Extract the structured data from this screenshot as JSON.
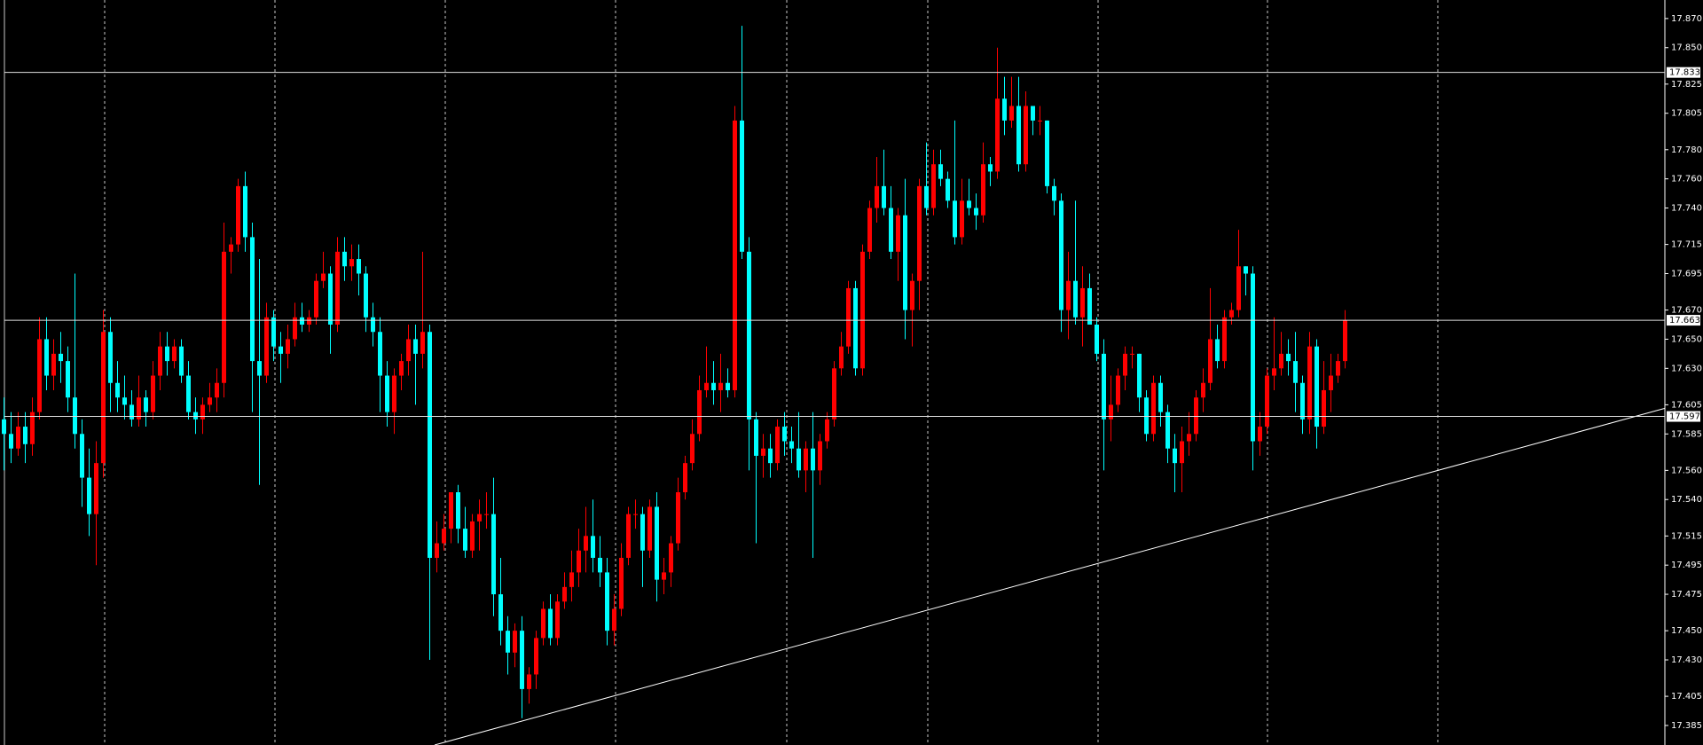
{
  "chart_data": {
    "type": "candlestick",
    "up_color": "#ff0000",
    "down_color": "#00ffff",
    "ylim": [
      17.3716,
      17.8827
    ],
    "yticks": [
      {
        "value": 17.87,
        "label": "17.870"
      },
      {
        "value": 17.85,
        "label": "17.850"
      },
      17.825,
      17.805,
      {
        "value": 17.78,
        "label": "17.780"
      },
      {
        "value": 17.76,
        "label": "17.760"
      },
      {
        "value": 17.74,
        "label": "17.740"
      },
      17.715,
      17.695,
      {
        "value": 17.67,
        "label": "17.670"
      },
      {
        "value": 17.65,
        "label": "17.650"
      },
      {
        "value": 17.63,
        "label": "17.630"
      },
      17.605,
      17.585,
      {
        "value": 17.56,
        "label": "17.560"
      },
      {
        "value": 17.54,
        "label": "17.540"
      },
      17.515,
      17.495,
      17.475,
      {
        "value": 17.45,
        "label": "17.450"
      },
      {
        "value": 17.43,
        "label": "17.430"
      },
      17.405,
      17.385
    ],
    "levels": [
      17.833,
      17.663,
      17.597
    ],
    "trendline": [
      17.3716,
      17.6026
    ],
    "open": [
      17.595,
      17.585,
      17.575,
      17.59,
      17.578,
      17.6,
      17.65,
      17.625,
      17.64,
      17.635,
      17.61,
      17.585,
      17.555,
      17.53,
      17.565,
      17.655,
      17.62,
      17.61,
      17.605,
      17.595,
      17.61,
      17.6,
      17.625,
      17.645,
      17.635,
      17.645,
      17.625,
      17.6,
      17.595,
      17.605,
      17.61,
      17.62,
      17.71,
      17.715,
      17.755,
      17.72,
      17.635,
      17.625,
      17.665,
      17.645,
      17.64,
      17.65,
      17.665,
      17.66,
      17.665,
      17.69,
      17.695,
      17.66,
      17.71,
      17.7,
      17.705,
      17.695,
      17.665,
      17.655,
      17.625,
      17.6,
      17.625,
      17.635,
      17.65,
      17.64,
      17.655,
      17.5,
      17.51,
      17.52,
      17.545,
      17.52,
      17.505,
      17.525,
      17.53,
      17.53,
      17.475,
      17.45,
      17.435,
      17.45,
      17.41,
      17.42,
      17.445,
      17.465,
      17.445,
      17.47,
      17.48,
      17.49,
      17.505,
      17.515,
      17.5,
      17.49,
      17.45,
      17.465,
      17.5,
      17.53,
      17.53,
      17.505,
      17.535,
      17.485,
      17.49,
      17.51,
      17.545,
      17.565,
      17.585,
      17.615,
      17.62,
      17.615,
      17.62,
      17.615,
      17.8,
      17.71,
      17.595,
      17.57,
      17.575,
      17.565,
      17.59,
      17.58,
      17.575,
      17.56,
      17.575,
      17.56,
      17.58,
      17.595,
      17.63,
      17.645,
      17.685,
      17.63,
      17.71,
      17.74,
      17.755,
      17.74,
      17.71,
      17.735,
      17.67,
      17.69,
      17.755,
      17.74,
      17.77,
      17.76,
      17.745,
      17.72,
      17.745,
      17.74,
      17.735,
      17.77,
      17.765,
      17.815,
      17.8,
      17.81,
      17.77,
      17.81,
      17.8,
      17.8,
      17.755,
      17.745,
      17.67,
      17.69,
      17.665,
      17.685,
      17.66,
      17.64,
      17.595,
      17.605,
      17.625,
      17.64,
      17.64,
      17.61,
      17.585,
      17.62,
      17.6,
      17.575,
      17.565,
      17.58,
      17.585,
      17.61,
      17.62,
      17.65,
      17.635,
      17.665,
      17.67,
      17.7,
      17.695,
      17.58,
      17.59,
      17.625,
      17.63,
      17.64,
      17.635,
      17.62,
      17.595,
      17.645,
      17.59,
      17.615,
      17.625,
      17.635
    ],
    "high": [
      17.61,
      17.6,
      17.6,
      17.6,
      17.61,
      17.665,
      17.665,
      17.65,
      17.655,
      17.645,
      17.695,
      17.595,
      17.575,
      17.58,
      17.67,
      17.665,
      17.635,
      17.625,
      17.615,
      17.625,
      17.615,
      17.635,
      17.655,
      17.655,
      17.65,
      17.65,
      17.635,
      17.61,
      17.61,
      17.62,
      17.63,
      17.73,
      17.72,
      17.76,
      17.765,
      17.73,
      17.705,
      17.675,
      17.67,
      17.655,
      17.66,
      17.675,
      17.675,
      17.67,
      17.695,
      17.71,
      17.7,
      17.72,
      17.72,
      17.715,
      17.715,
      17.7,
      17.675,
      17.665,
      17.635,
      17.63,
      17.64,
      17.66,
      17.66,
      17.71,
      17.66,
      17.525,
      17.53,
      17.545,
      17.55,
      17.535,
      17.53,
      17.54,
      17.545,
      17.555,
      17.5,
      17.46,
      17.455,
      17.46,
      17.425,
      17.45,
      17.47,
      17.475,
      17.475,
      17.49,
      17.505,
      17.52,
      17.535,
      17.54,
      17.515,
      17.5,
      17.475,
      17.51,
      17.535,
      17.54,
      17.535,
      17.54,
      17.545,
      17.5,
      17.515,
      17.555,
      17.57,
      17.595,
      17.625,
      17.645,
      17.635,
      17.64,
      17.63,
      17.81,
      17.865,
      17.72,
      17.6,
      17.585,
      17.585,
      17.595,
      17.6,
      17.59,
      17.6,
      17.58,
      17.6,
      17.585,
      17.6,
      17.635,
      17.655,
      17.69,
      17.69,
      17.715,
      17.745,
      17.775,
      17.78,
      17.755,
      17.74,
      17.76,
      17.695,
      17.76,
      17.785,
      17.78,
      17.78,
      17.765,
      17.8,
      17.76,
      17.76,
      17.75,
      17.785,
      17.775,
      17.85,
      17.83,
      17.83,
      17.83,
      17.82,
      17.81,
      17.81,
      17.8,
      17.76,
      17.75,
      17.71,
      17.745,
      17.7,
      17.695,
      17.665,
      17.65,
      17.625,
      17.63,
      17.645,
      17.645,
      17.64,
      17.615,
      17.625,
      17.625,
      17.605,
      17.585,
      17.59,
      17.6,
      17.615,
      17.63,
      17.685,
      17.66,
      17.67,
      17.675,
      17.725,
      17.7,
      17.7,
      17.6,
      17.63,
      17.665,
      17.655,
      17.65,
      17.655,
      17.625,
      17.655,
      17.65,
      17.635,
      17.64,
      17.64,
      17.67
    ],
    "low": [
      17.56,
      17.565,
      17.57,
      17.565,
      17.57,
      17.595,
      17.615,
      17.615,
      17.62,
      17.6,
      17.575,
      17.535,
      17.515,
      17.495,
      17.555,
      17.6,
      17.6,
      17.595,
      17.59,
      17.59,
      17.59,
      17.595,
      17.615,
      17.625,
      17.63,
      17.62,
      17.595,
      17.585,
      17.585,
      17.6,
      17.6,
      17.61,
      17.695,
      17.71,
      17.71,
      17.6,
      17.55,
      17.62,
      17.635,
      17.62,
      17.63,
      17.645,
      17.655,
      17.655,
      17.66,
      17.685,
      17.64,
      17.655,
      17.69,
      17.69,
      17.68,
      17.655,
      17.645,
      17.6,
      17.59,
      17.585,
      17.615,
      17.625,
      17.605,
      17.63,
      17.43,
      17.49,
      17.505,
      17.51,
      17.51,
      17.5,
      17.5,
      17.505,
      17.52,
      17.46,
      17.44,
      17.42,
      17.425,
      17.39,
      17.4,
      17.41,
      17.44,
      17.44,
      17.44,
      17.465,
      17.47,
      17.48,
      17.49,
      17.49,
      17.48,
      17.44,
      17.44,
      17.46,
      17.495,
      17.52,
      17.48,
      17.5,
      17.47,
      17.475,
      17.48,
      17.505,
      17.54,
      17.56,
      17.58,
      17.61,
      17.605,
      17.6,
      17.61,
      17.61,
      17.705,
      17.56,
      17.51,
      17.555,
      17.555,
      17.56,
      17.57,
      17.565,
      17.555,
      17.545,
      17.5,
      17.55,
      17.575,
      17.59,
      17.625,
      17.64,
      17.625,
      17.625,
      17.705,
      17.73,
      17.735,
      17.705,
      17.69,
      17.65,
      17.645,
      17.67,
      17.735,
      17.735,
      17.755,
      17.74,
      17.715,
      17.715,
      17.735,
      17.725,
      17.73,
      17.755,
      17.76,
      17.79,
      17.795,
      17.765,
      17.765,
      17.79,
      17.79,
      17.75,
      17.735,
      17.655,
      17.65,
      17.66,
      17.645,
      17.66,
      17.635,
      17.56,
      17.58,
      17.6,
      17.615,
      17.63,
      17.6,
      17.58,
      17.58,
      17.59,
      17.565,
      17.545,
      17.545,
      17.57,
      17.58,
      17.6,
      17.615,
      17.63,
      17.63,
      17.66,
      17.665,
      17.68,
      17.56,
      17.57,
      17.585,
      17.615,
      17.625,
      17.625,
      17.6,
      17.585,
      17.585,
      17.575,
      17.585,
      17.6,
      17.62,
      17.63
    ],
    "close": [
      17.585,
      17.575,
      17.59,
      17.578,
      17.6,
      17.65,
      17.625,
      17.64,
      17.635,
      17.61,
      17.585,
      17.555,
      17.53,
      17.565,
      17.655,
      17.62,
      17.61,
      17.605,
      17.595,
      17.61,
      17.6,
      17.625,
      17.645,
      17.635,
      17.645,
      17.625,
      17.6,
      17.595,
      17.605,
      17.61,
      17.62,
      17.71,
      17.715,
      17.755,
      17.72,
      17.635,
      17.625,
      17.665,
      17.645,
      17.64,
      17.65,
      17.665,
      17.66,
      17.665,
      17.69,
      17.695,
      17.66,
      17.71,
      17.7,
      17.705,
      17.695,
      17.665,
      17.655,
      17.625,
      17.6,
      17.625,
      17.635,
      17.65,
      17.64,
      17.655,
      17.5,
      17.51,
      17.52,
      17.545,
      17.52,
      17.505,
      17.525,
      17.53,
      17.53,
      17.475,
      17.45,
      17.435,
      17.45,
      17.41,
      17.42,
      17.445,
      17.465,
      17.445,
      17.47,
      17.48,
      17.49,
      17.505,
      17.515,
      17.5,
      17.49,
      17.45,
      17.465,
      17.5,
      17.53,
      17.53,
      17.505,
      17.535,
      17.485,
      17.49,
      17.51,
      17.545,
      17.565,
      17.585,
      17.615,
      17.62,
      17.615,
      17.62,
      17.615,
      17.8,
      17.71,
      17.595,
      17.57,
      17.575,
      17.565,
      17.59,
      17.58,
      17.575,
      17.56,
      17.575,
      17.56,
      17.58,
      17.595,
      17.63,
      17.645,
      17.685,
      17.63,
      17.71,
      17.74,
      17.755,
      17.74,
      17.71,
      17.735,
      17.67,
      17.69,
      17.755,
      17.74,
      17.77,
      17.76,
      17.745,
      17.72,
      17.745,
      17.74,
      17.735,
      17.77,
      17.765,
      17.815,
      17.8,
      17.81,
      17.77,
      17.81,
      17.8,
      17.8,
      17.755,
      17.745,
      17.67,
      17.69,
      17.665,
      17.685,
      17.66,
      17.64,
      17.595,
      17.605,
      17.625,
      17.64,
      17.64,
      17.61,
      17.585,
      17.62,
      17.6,
      17.575,
      17.565,
      17.58,
      17.585,
      17.61,
      17.62,
      17.65,
      17.635,
      17.665,
      17.67,
      17.7,
      17.695,
      17.58,
      17.59,
      17.625,
      17.63,
      17.64,
      17.635,
      17.62,
      17.595,
      17.645,
      17.59,
      17.615,
      17.625,
      17.635,
      17.663
    ]
  }
}
